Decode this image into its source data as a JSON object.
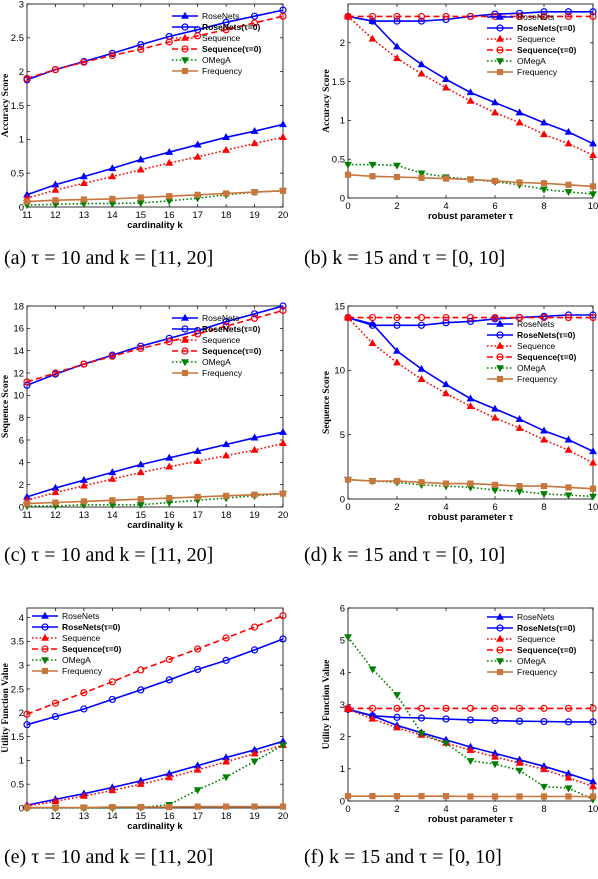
{
  "chart_data": [
    {
      "type": "line",
      "caption": "(a) τ = 10 and k = [11, 20]",
      "xlabel": "cardinality k",
      "ylabel": "Accuracy Score",
      "xlim": [
        11,
        20
      ],
      "ylim": [
        0,
        3
      ],
      "xticks": [
        11,
        12,
        13,
        14,
        15,
        16,
        17,
        18,
        19,
        20
      ],
      "yticks": [
        0,
        0.5,
        1,
        1.5,
        2,
        2.5,
        3
      ],
      "ytick_labels": [
        "0",
        "0.5",
        "1",
        "1.5",
        "2",
        "2.5",
        "3"
      ],
      "legend_pos": "top-right",
      "x": [
        11,
        12,
        13,
        14,
        15,
        16,
        17,
        18,
        19,
        20
      ],
      "series": [
        {
          "name": "RoseNets",
          "color": "#0000ff",
          "dash": "solid",
          "marker": "tri-up",
          "values": [
            0.18,
            0.33,
            0.45,
            0.57,
            0.7,
            0.81,
            0.92,
            1.03,
            1.12,
            1.22
          ]
        },
        {
          "name": "RoseNets(τ=0)",
          "color": "#0000ff",
          "dash": "solid",
          "marker": "circle",
          "values": [
            1.88,
            2.03,
            2.15,
            2.27,
            2.4,
            2.52,
            2.62,
            2.73,
            2.82,
            2.91
          ]
        },
        {
          "name": "Sequence",
          "color": "#ff0000",
          "dash": "dotted",
          "marker": "tri-up",
          "values": [
            0.13,
            0.25,
            0.35,
            0.45,
            0.55,
            0.65,
            0.74,
            0.84,
            0.94,
            1.03
          ]
        },
        {
          "name": "Sequence(τ=0)",
          "color": "#ff0000",
          "dash": "dashed",
          "marker": "circle",
          "values": [
            1.9,
            2.03,
            2.14,
            2.24,
            2.33,
            2.44,
            2.53,
            2.62,
            2.72,
            2.82
          ]
        },
        {
          "name": "OMegA",
          "color": "#008000",
          "dash": "dotted",
          "marker": "tri-down",
          "values": [
            0.03,
            0.04,
            0.05,
            0.05,
            0.06,
            0.09,
            0.13,
            0.18,
            0.22,
            0.24
          ]
        },
        {
          "name": "Frequency",
          "color": "#c8763c",
          "dash": "solid",
          "marker": "square",
          "values": [
            0.08,
            0.1,
            0.11,
            0.12,
            0.14,
            0.16,
            0.18,
            0.2,
            0.22,
            0.24
          ]
        }
      ]
    },
    {
      "type": "line",
      "caption": "(b) k = 15 and τ = [0, 10]",
      "xlabel": "robust parameter τ",
      "ylabel": "Accuracy Score",
      "xlim": [
        0,
        10
      ],
      "ylim": [
        0,
        2.5
      ],
      "xticks": [
        0,
        2,
        4,
        6,
        8,
        10
      ],
      "yticks": [
        0,
        0.5,
        1,
        1.5,
        2
      ],
      "ytick_labels": [
        "0",
        "0.5",
        "1",
        "1.5",
        "2"
      ],
      "legend_pos": "top-right",
      "x": [
        0,
        1,
        2,
        3,
        4,
        5,
        6,
        7,
        8,
        9,
        10
      ],
      "series": [
        {
          "name": "RoseNets",
          "color": "#0000ff",
          "dash": "solid",
          "marker": "tri-up",
          "values": [
            2.34,
            2.28,
            1.95,
            1.72,
            1.53,
            1.36,
            1.23,
            1.1,
            0.97,
            0.85,
            0.7
          ]
        },
        {
          "name": "RoseNets(τ=0)",
          "color": "#0000ff",
          "dash": "solid",
          "marker": "circle",
          "values": [
            2.34,
            2.28,
            2.28,
            2.28,
            2.3,
            2.34,
            2.37,
            2.38,
            2.4,
            2.4,
            2.4
          ]
        },
        {
          "name": "Sequence",
          "color": "#ff0000",
          "dash": "dotted",
          "marker": "tri-up",
          "values": [
            2.34,
            2.05,
            1.8,
            1.6,
            1.42,
            1.25,
            1.1,
            0.97,
            0.82,
            0.7,
            0.55
          ]
        },
        {
          "name": "Sequence(τ=0)",
          "color": "#ff0000",
          "dash": "dashed",
          "marker": "circle",
          "values": [
            2.34,
            2.34,
            2.34,
            2.34,
            2.34,
            2.34,
            2.34,
            2.34,
            2.34,
            2.34,
            2.34
          ]
        },
        {
          "name": "OMegA",
          "color": "#008000",
          "dash": "dotted",
          "marker": "tri-down",
          "values": [
            0.43,
            0.43,
            0.42,
            0.32,
            0.27,
            0.24,
            0.21,
            0.17,
            0.11,
            0.08,
            0.05
          ]
        },
        {
          "name": "Frequency",
          "color": "#c8763c",
          "dash": "solid",
          "marker": "square",
          "values": [
            0.3,
            0.28,
            0.27,
            0.26,
            0.25,
            0.24,
            0.22,
            0.2,
            0.19,
            0.17,
            0.15
          ]
        }
      ]
    },
    {
      "type": "line",
      "caption": "(c) τ = 10 and k = [11, 20]",
      "xlabel": "cardinality k",
      "ylabel": "Sequence Score",
      "xlim": [
        11,
        20
      ],
      "ylim": [
        0,
        18
      ],
      "xticks": [
        11,
        12,
        13,
        14,
        15,
        16,
        17,
        18,
        19,
        20
      ],
      "yticks": [
        0,
        2,
        4,
        6,
        8,
        10,
        12,
        14,
        16,
        18
      ],
      "ytick_labels": [
        "0",
        "2",
        "4",
        "6",
        "8",
        "10",
        "12",
        "14",
        "16",
        "18"
      ],
      "legend_pos": "top-right",
      "x": [
        11,
        12,
        13,
        14,
        15,
        16,
        17,
        18,
        19,
        20
      ],
      "series": [
        {
          "name": "RoseNets",
          "color": "#0000ff",
          "dash": "solid",
          "marker": "tri-up",
          "values": [
            0.9,
            1.7,
            2.4,
            3.1,
            3.8,
            4.4,
            5.0,
            5.6,
            6.2,
            6.7
          ]
        },
        {
          "name": "RoseNets(τ=0)",
          "color": "#0000ff",
          "dash": "solid",
          "marker": "circle",
          "values": [
            10.9,
            11.9,
            12.8,
            13.6,
            14.4,
            15.1,
            15.8,
            16.6,
            17.3,
            18.0
          ]
        },
        {
          "name": "Sequence",
          "color": "#ff0000",
          "dash": "dotted",
          "marker": "tri-up",
          "values": [
            0.6,
            1.3,
            1.9,
            2.5,
            3.1,
            3.6,
            4.1,
            4.6,
            5.1,
            5.7
          ]
        },
        {
          "name": "Sequence(τ=0)",
          "color": "#ff0000",
          "dash": "dashed",
          "marker": "circle",
          "values": [
            11.2,
            12.0,
            12.8,
            13.5,
            14.2,
            14.8,
            15.5,
            16.2,
            16.9,
            17.6
          ]
        },
        {
          "name": "OMegA",
          "color": "#008000",
          "dash": "dotted",
          "marker": "tri-down",
          "values": [
            0.1,
            0.1,
            0.2,
            0.2,
            0.2,
            0.4,
            0.6,
            0.8,
            1.0,
            1.2
          ]
        },
        {
          "name": "Frequency",
          "color": "#c8763c",
          "dash": "solid",
          "marker": "square",
          "values": [
            0.3,
            0.4,
            0.5,
            0.6,
            0.7,
            0.8,
            0.9,
            1.0,
            1.1,
            1.2
          ]
        }
      ]
    },
    {
      "type": "line",
      "caption": "(d) k = 15 and τ = [0, 10]",
      "xlabel": "robust parameter τ",
      "ylabel": "Sequence Score",
      "xlim": [
        0,
        10
      ],
      "ylim": [
        0,
        15
      ],
      "xticks": [
        0,
        2,
        4,
        6,
        8,
        10
      ],
      "yticks": [
        0,
        5,
        10,
        15
      ],
      "ytick_labels": [
        "0",
        "5",
        "10",
        "15"
      ],
      "legend_pos": "top-right",
      "x": [
        0,
        1,
        2,
        3,
        4,
        5,
        6,
        7,
        8,
        9,
        10
      ],
      "series": [
        {
          "name": "RoseNets",
          "color": "#0000ff",
          "dash": "solid",
          "marker": "tri-up",
          "values": [
            14.1,
            13.6,
            11.5,
            10.1,
            8.9,
            7.8,
            7.0,
            6.2,
            5.3,
            4.6,
            3.7
          ]
        },
        {
          "name": "RoseNets(τ=0)",
          "color": "#0000ff",
          "dash": "solid",
          "marker": "circle",
          "values": [
            14.1,
            13.5,
            13.5,
            13.5,
            13.7,
            13.8,
            14.0,
            14.1,
            14.2,
            14.3,
            14.3
          ]
        },
        {
          "name": "Sequence",
          "color": "#ff0000",
          "dash": "dotted",
          "marker": "tri-up",
          "values": [
            14.1,
            12.1,
            10.6,
            9.3,
            8.2,
            7.2,
            6.3,
            5.5,
            4.6,
            3.8,
            2.8
          ]
        },
        {
          "name": "Sequence(τ=0)",
          "color": "#ff0000",
          "dash": "dashed",
          "marker": "circle",
          "values": [
            14.1,
            14.1,
            14.1,
            14.1,
            14.1,
            14.1,
            14.1,
            14.1,
            14.1,
            14.1,
            14.1
          ]
        },
        {
          "name": "OMegA",
          "color": "#008000",
          "dash": "dotted",
          "marker": "tri-down",
          "values": [
            1.5,
            1.4,
            1.3,
            1.1,
            1.0,
            0.9,
            0.7,
            0.6,
            0.4,
            0.3,
            0.2
          ]
        },
        {
          "name": "Frequency",
          "color": "#c8763c",
          "dash": "solid",
          "marker": "square",
          "values": [
            1.5,
            1.4,
            1.4,
            1.3,
            1.2,
            1.2,
            1.1,
            1.0,
            1.0,
            0.9,
            0.8
          ]
        }
      ]
    },
    {
      "type": "line",
      "caption": "(e) τ = 10 and k = [11, 20]",
      "xlabel": "cardinality k",
      "ylabel": "Utility Function Value",
      "xlim": [
        11,
        20
      ],
      "ylim": [
        0,
        4.2
      ],
      "xticks": [
        12,
        13,
        14,
        15,
        16,
        17,
        18,
        19,
        20
      ],
      "yticks": [
        0,
        0.5,
        1,
        1.5,
        2,
        2.5,
        3,
        3.5,
        4
      ],
      "ytick_labels": [
        "0",
        "0.5",
        "1",
        "1.5",
        "2",
        "2.5",
        "3",
        "3.5",
        "4"
      ],
      "legend_pos": "top-left",
      "x": [
        11,
        12,
        13,
        14,
        15,
        16,
        17,
        18,
        19,
        20
      ],
      "series": [
        {
          "name": "RoseNets",
          "color": "#0000ff",
          "dash": "solid",
          "marker": "tri-up",
          "values": [
            0.06,
            0.18,
            0.3,
            0.43,
            0.57,
            0.72,
            0.89,
            1.06,
            1.22,
            1.4
          ]
        },
        {
          "name": "RoseNets(τ=0)",
          "color": "#0000ff",
          "dash": "solid",
          "marker": "circle",
          "values": [
            1.75,
            1.92,
            2.08,
            2.28,
            2.48,
            2.69,
            2.91,
            3.1,
            3.32,
            3.55
          ]
        },
        {
          "name": "Sequence",
          "color": "#ff0000",
          "dash": "dotted",
          "marker": "tri-up",
          "values": [
            0.04,
            0.14,
            0.25,
            0.37,
            0.5,
            0.64,
            0.8,
            0.97,
            1.14,
            1.32
          ]
        },
        {
          "name": "Sequence(τ=0)",
          "color": "#ff0000",
          "dash": "dashed",
          "marker": "circle",
          "values": [
            1.97,
            2.2,
            2.42,
            2.65,
            2.9,
            3.12,
            3.34,
            3.57,
            3.8,
            4.04
          ]
        },
        {
          "name": "OMegA",
          "color": "#008000",
          "dash": "dotted",
          "marker": "tri-down",
          "values": [
            0.0,
            0.0,
            0.0,
            0.0,
            0.01,
            0.07,
            0.38,
            0.65,
            0.98,
            1.32
          ]
        },
        {
          "name": "Frequency",
          "color": "#c8763c",
          "dash": "solid",
          "marker": "square",
          "values": [
            0.01,
            0.01,
            0.01,
            0.02,
            0.02,
            0.02,
            0.03,
            0.03,
            0.03,
            0.03
          ]
        }
      ]
    },
    {
      "type": "line",
      "caption": "(f) k = 15 and τ = [0, 10]",
      "xlabel": "robust parameter τ",
      "ylabel": "Utility Function Value",
      "xlim": [
        0,
        10
      ],
      "ylim": [
        0,
        6
      ],
      "xticks": [
        0,
        2,
        4,
        6,
        8,
        10
      ],
      "yticks": [
        0,
        1,
        2,
        3,
        4,
        5,
        6
      ],
      "ytick_labels": [
        "0",
        "1",
        "2",
        "3",
        "4",
        "5",
        "6"
      ],
      "legend_pos": "top-right",
      "x": [
        0,
        1,
        2,
        3,
        4,
        5,
        6,
        7,
        8,
        9,
        10
      ],
      "series": [
        {
          "name": "RoseNets",
          "color": "#0000ff",
          "dash": "solid",
          "marker": "tri-up",
          "values": [
            2.85,
            2.65,
            2.35,
            2.12,
            1.9,
            1.68,
            1.48,
            1.28,
            1.08,
            0.85,
            0.6
          ]
        },
        {
          "name": "RoseNets(τ=0)",
          "color": "#0000ff",
          "dash": "solid",
          "marker": "circle",
          "values": [
            2.85,
            2.65,
            2.6,
            2.58,
            2.55,
            2.52,
            2.5,
            2.48,
            2.47,
            2.46,
            2.46
          ]
        },
        {
          "name": "Sequence",
          "color": "#ff0000",
          "dash": "dotted",
          "marker": "tri-up",
          "values": [
            2.85,
            2.55,
            2.28,
            2.05,
            1.8,
            1.58,
            1.37,
            1.18,
            0.98,
            0.72,
            0.45
          ]
        },
        {
          "name": "Sequence(τ=0)",
          "color": "#ff0000",
          "dash": "dashed",
          "marker": "circle",
          "values": [
            2.88,
            2.88,
            2.88,
            2.88,
            2.88,
            2.88,
            2.88,
            2.88,
            2.88,
            2.88,
            2.88
          ]
        },
        {
          "name": "OMegA",
          "color": "#008000",
          "dash": "dotted",
          "marker": "tri-down",
          "values": [
            5.1,
            4.1,
            3.3,
            2.1,
            1.8,
            1.25,
            1.15,
            0.95,
            0.45,
            0.4,
            0.05
          ]
        },
        {
          "name": "Frequency",
          "color": "#c8763c",
          "dash": "solid",
          "marker": "square",
          "values": [
            0.15,
            0.15,
            0.15,
            0.15,
            0.15,
            0.14,
            0.14,
            0.14,
            0.14,
            0.14,
            0.14
          ]
        }
      ]
    }
  ]
}
